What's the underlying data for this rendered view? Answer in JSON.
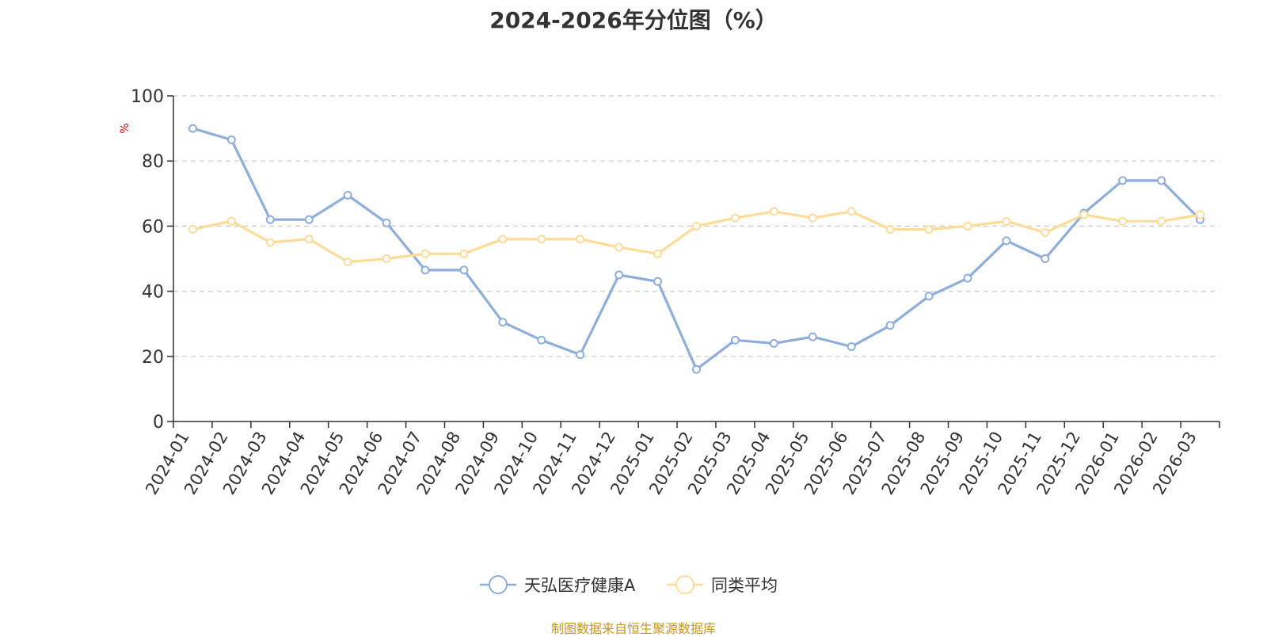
{
  "chart_data": {
    "type": "line",
    "title": "2024-2026年分位图（%）",
    "ylabel": "%",
    "ylim": [
      0,
      100
    ],
    "yticks": [
      0,
      20,
      40,
      60,
      80,
      100
    ],
    "grid": true,
    "legend_position": "bottom",
    "categories": [
      "2024-01",
      "2024-02",
      "2024-03",
      "2024-04",
      "2024-05",
      "2024-06",
      "2024-07",
      "2024-08",
      "2024-09",
      "2024-10",
      "2024-11",
      "2024-12",
      "2025-01",
      "2025-02",
      "2025-03",
      "2025-04",
      "2025-05",
      "2025-06",
      "2025-07",
      "2025-08",
      "2025-09",
      "2025-10",
      "2025-11",
      "2025-12",
      "2026-01",
      "2026-02",
      "2026-03"
    ],
    "series": [
      {
        "name": "天弘医疗健康A",
        "color": "#8eaedb",
        "values": [
          90,
          86.5,
          62,
          62,
          69.5,
          61,
          46.5,
          46.5,
          30.5,
          25,
          20.5,
          45,
          43,
          16,
          25,
          24,
          26,
          23,
          29.5,
          38.5,
          44,
          55.5,
          50,
          64,
          74,
          74,
          62
        ]
      },
      {
        "name": "同类平均",
        "color": "#fddc98",
        "values": [
          59,
          61.5,
          55,
          56,
          49,
          50,
          51.5,
          51.5,
          56,
          56,
          56,
          53.5,
          51.5,
          60,
          62.5,
          64.5,
          62.5,
          64.5,
          59,
          59,
          60,
          61.5,
          58,
          63.5,
          61.5,
          61.5,
          63.5
        ]
      }
    ]
  },
  "source_note": "制图数据来自恒生聚源数据库"
}
